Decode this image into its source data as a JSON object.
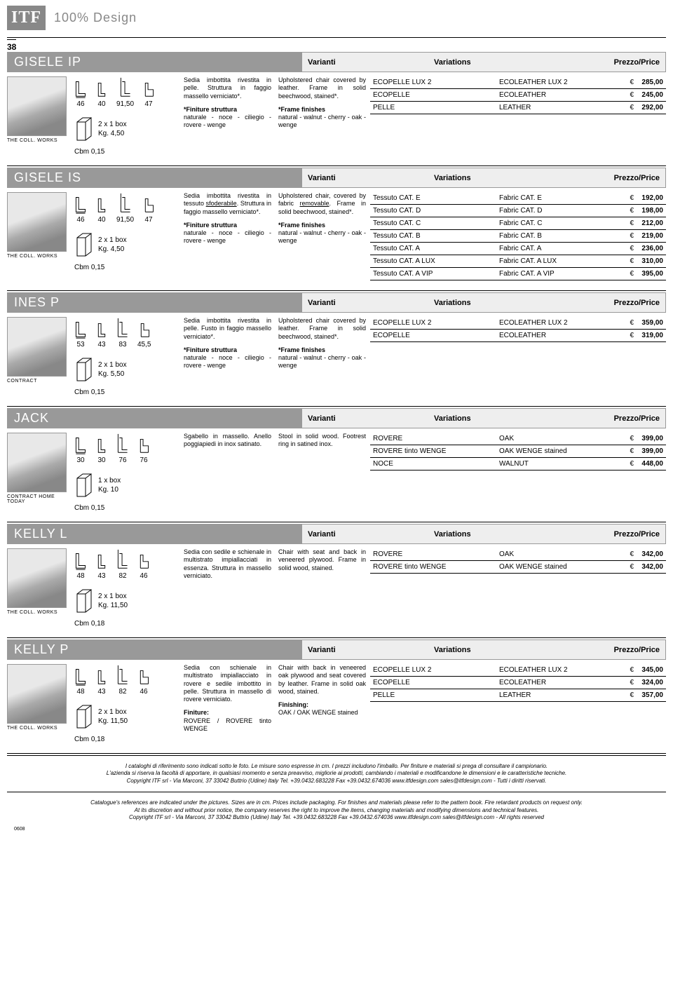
{
  "brand": {
    "logo": "ITF",
    "text": "100% Design"
  },
  "pageNumber": "38",
  "headerCols": {
    "c1": "Varianti",
    "c2": "Variations",
    "c3": "Prezzo/Price"
  },
  "products": [
    {
      "name": "GISELE IP",
      "thumbLabel": "THE COLL. WORKS",
      "dims": [
        "46",
        "40",
        "91,50",
        "47"
      ],
      "box": "2 x 1 box",
      "weight": "Kg. 4,50",
      "cbm": "Cbm 0,15",
      "descIt": "Sedia imbottita rivestita in pelle. Struttura in faggio massello verniciato*.",
      "descEn": "Upholstered chair covered by leather. Frame in solid beechwood, stained*.",
      "finItTitle": "*Finiture struttura",
      "finIt": "naturale - noce - ciliegio - rovere - wenge",
      "finEnTitle": "*Frame finishes",
      "finEn": "natural - walnut - cherry - oak - wenge",
      "variants": [
        {
          "it": "ECOPELLE LUX 2",
          "en": "ECOLEATHER LUX 2",
          "cur": "€",
          "price": "285,00"
        },
        {
          "it": "ECOPELLE",
          "en": "ECOLEATHER",
          "cur": "€",
          "price": "245,00"
        },
        {
          "it": "PELLE",
          "en": "LEATHER",
          "cur": "€",
          "price": "292,00"
        }
      ]
    },
    {
      "name": "GISELE IS",
      "thumbLabel": "THE COLL. WORKS",
      "dims": [
        "46",
        "40",
        "91,50",
        "47"
      ],
      "box": "2 x 1 box",
      "weight": "Kg. 4,50",
      "cbm": "Cbm 0,15",
      "descIt": "Sedia imbottita rivestita in tessuto <span class='underline'>sfoderabile</span>. Struttura in faggio massello verniciato*.",
      "descEn": "Upholstered chair, covered by fabric <span class='underline'>removable</span>. Frame in solid beechwood, stained*.",
      "finItTitle": "*Finiture struttura",
      "finIt": "naturale - noce - ciliegio - rovere - wenge",
      "finEnTitle": "*Frame finishes",
      "finEn": "natural - walnut - cherry - oak - wenge",
      "variants": [
        {
          "it": "Tessuto CAT. E",
          "en": "Fabric CAT. E",
          "cur": "€",
          "price": "192,00"
        },
        {
          "it": "Tessuto CAT. D",
          "en": "Fabric CAT. D",
          "cur": "€",
          "price": "198,00"
        },
        {
          "it": "Tessuto CAT. C",
          "en": "Fabric CAT. C",
          "cur": "€",
          "price": "212,00"
        },
        {
          "it": "Tessuto CAT. B",
          "en": "Fabric CAT. B",
          "cur": "€",
          "price": "219,00"
        },
        {
          "it": "Tessuto CAT. A",
          "en": "Fabric CAT. A",
          "cur": "€",
          "price": "236,00"
        },
        {
          "it": "Tessuto CAT. A LUX",
          "en": "Fabric CAT. A LUX",
          "cur": "€",
          "price": "310,00"
        },
        {
          "it": "Tessuto CAT. A VIP",
          "en": "Fabric CAT. A VIP",
          "cur": "€",
          "price": "395,00"
        }
      ]
    },
    {
      "name": "INES P",
      "thumbLabel": "CONTRACT",
      "dims": [
        "53",
        "43",
        "83",
        "45,5"
      ],
      "box": "2 x 1 box",
      "weight": "Kg. 5,50",
      "cbm": "Cbm 0,15",
      "descIt": "Sedia imbottita rivestita in pelle. Fusto in faggio massello verniciato*.",
      "descEn": "Upholstered chair covered by leather. Frame in solid beechwood, stained*.",
      "finItTitle": "*Finiture struttura",
      "finIt": "naturale - noce - ciliegio - rovere - wenge",
      "finEnTitle": "*Frame finishes",
      "finEn": "natural - walnut - cherry - oak - wenge",
      "variants": [
        {
          "it": "ECOPELLE LUX 2",
          "en": "ECOLEATHER LUX 2",
          "cur": "€",
          "price": "359,00"
        },
        {
          "it": "ECOPELLE",
          "en": "ECOLEATHER",
          "cur": "€",
          "price": "319,00"
        }
      ]
    },
    {
      "name": "JACK",
      "thumbLabel": "CONTRACT HOME TODAY",
      "dims": [
        "30",
        "30",
        "76",
        "76"
      ],
      "box": "1 x box",
      "weight": "Kg. 10",
      "cbm": "Cbm 0,15",
      "descIt": "Sgabello in massello. Anello poggiapiedi in inox satinato.",
      "descEn": "Stool in solid wood. Footrest ring in satined inox.",
      "finItTitle": "",
      "finIt": "",
      "finEnTitle": "",
      "finEn": "",
      "variants": [
        {
          "it": "ROVERE",
          "en": "OAK",
          "cur": "€",
          "price": "399,00"
        },
        {
          "it": "ROVERE tinto WENGE",
          "en": "OAK WENGE stained",
          "cur": "€",
          "price": "399,00"
        },
        {
          "it": "NOCE",
          "en": "WALNUT",
          "cur": "€",
          "price": "448,00"
        }
      ]
    },
    {
      "name": "KELLY L",
      "thumbLabel": "THE COLL. WORKS",
      "dims": [
        "48",
        "43",
        "82",
        "46"
      ],
      "box": "2 x 1 box",
      "weight": "Kg. 11,50",
      "cbm": "Cbm 0,18",
      "descIt": "Sedia con sedile e schienale in multistrato impiallacciati in essenza. Struttura in massello verniciato.",
      "descEn": "Chair with seat and back in veneered plywood. Frame in solid wood, stained.",
      "finItTitle": "",
      "finIt": "",
      "finEnTitle": "",
      "finEn": "",
      "variants": [
        {
          "it": "ROVERE",
          "en": "OAK",
          "cur": "€",
          "price": "342,00"
        },
        {
          "it": "ROVERE tinto WENGE",
          "en": "OAK WENGE stained",
          "cur": "€",
          "price": "342,00"
        }
      ]
    },
    {
      "name": "KELLY P",
      "thumbLabel": "THE COLL. WORKS",
      "dims": [
        "48",
        "43",
        "82",
        "46"
      ],
      "box": "2 x 1 box",
      "weight": "Kg. 11,50",
      "cbm": "Cbm 0,18",
      "descIt": "Sedia con schienale in multistrato impiallacciato in rovere e sedile imbottito in pelle. Struttura in massello di rovere verniciato.",
      "descEn": "Chair with back in veneered oak plywood and seat covered by leather. Frame in solid oak wood, stained.",
      "finItTitle": "Finiture:",
      "finIt": "ROVERE / ROVERE tinto WENGE",
      "finEnTitle": "Finishing:",
      "finEn": "OAK / OAK WENGE stained",
      "variants": [
        {
          "it": "ECOPELLE LUX 2",
          "en": "ECOLEATHER LUX 2",
          "cur": "€",
          "price": "345,00"
        },
        {
          "it": "ECOPELLE",
          "en": "ECOLEATHER",
          "cur": "€",
          "price": "324,00"
        },
        {
          "it": "PELLE",
          "en": "LEATHER",
          "cur": "€",
          "price": "357,00"
        }
      ]
    }
  ],
  "footer": {
    "l1": "I cataloghi di riferimento sono indicati sotto le foto. Le misure sono espresse in cm.  I prezzi includono l'imballo. Per finiture e materiali si prega di consultare il campionario.",
    "l2": "L'azienda si riserva la facoltà di apportare, in qualsiasi momento e senza preavviso, migliorie ai prodotti, cambiando i materiali e modificandone le dimensioni e le caratteristiche tecniche.",
    "l3": "Copyright ITF  srl - Via Marconi, 37  33042 Buttrio (Udine) Italy  Tel.  +39.0432.683228 Fax +39.0432.674036  www.itfdesign.com  sales@itfdesign.com  - Tutti i diritti riservati.",
    "l4": "Catalogue's references are indicated under the pictures. Sizes are in cm. Prices include packaging. For finishes and materials please refer to the pattern book. Fire retardant products on request only.",
    "l5": "At its discretion and without prior notice, the company reserves the right to improve the items, changing materials and modifying dimensions and  technical features.",
    "l6": "Copyright ITF  srl - Via Marconi, 37  33042 Buttrio (Udine) Italy  Tel.  +39.0432.683228 Fax +39.0432.674036  www.itfdesign.com  sales@itfdesign.com  - All rights reserved",
    "num": "0608"
  }
}
